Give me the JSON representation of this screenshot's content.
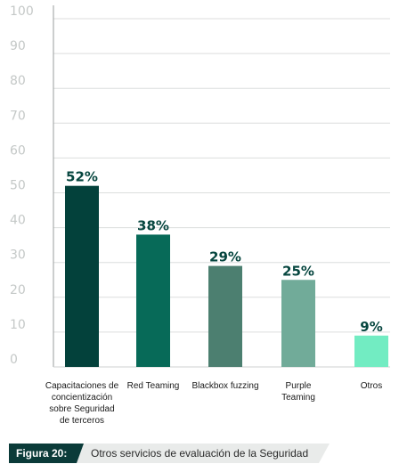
{
  "chart_data": {
    "type": "bar",
    "categories": [
      "Capacitaciones de\nconcientización\nsobre Seguridad\nde terceros",
      "Red Teaming",
      "Blackbox fuzzing",
      "Purple\nTeaming",
      "Otros"
    ],
    "values": [
      52,
      38,
      29,
      25,
      9
    ],
    "data_labels": [
      "52%",
      "38%",
      "29%",
      "25%",
      "9%"
    ],
    "bar_colors": [
      "#03413b",
      "#076a58",
      "#4c7f70",
      "#71ab99",
      "#72ecc2"
    ],
    "ylim": [
      0,
      100
    ],
    "yticks": [
      "0",
      "10",
      "20",
      "30",
      "40",
      "50",
      "60",
      "70",
      "80",
      "90",
      "100"
    ],
    "grid": true
  },
  "caption": {
    "tag": "Figura 20:",
    "text": "Otros servicios de evaluación de la Seguridad"
  }
}
